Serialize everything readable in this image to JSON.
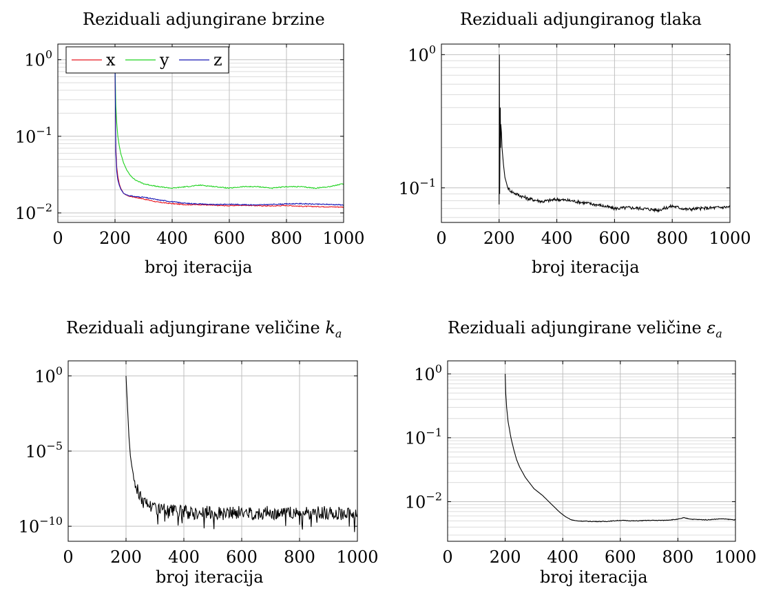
{
  "chart_data": [
    {
      "type": "line",
      "title": "Reziduali adjungirane brzine",
      "xlabel": "broj iteracija",
      "ylabel": "",
      "xlim": [
        0,
        1000
      ],
      "ylim": [
        0.0075,
        1.6
      ],
      "yscale": "log",
      "xticks": [
        0,
        200,
        400,
        600,
        800,
        1000
      ],
      "yticks": [
        {
          "value": 1,
          "base": "10",
          "exp": "0"
        },
        {
          "value": 0.1,
          "base": "10",
          "exp": "−1"
        },
        {
          "value": 0.01,
          "base": "10",
          "exp": "−2"
        }
      ],
      "grid": true,
      "legend": {
        "position": "top-left",
        "entries": [
          "x",
          "y",
          "z"
        ]
      },
      "series": [
        {
          "name": "x",
          "color": "#e8141e",
          "x": [
            200,
            203,
            206,
            210,
            215,
            220,
            230,
            240,
            250,
            270,
            300,
            350,
            400,
            450,
            500,
            550,
            600,
            650,
            700,
            750,
            800,
            850,
            900,
            950,
            1000
          ],
          "y": [
            0.9,
            0.07,
            0.04,
            0.03,
            0.024,
            0.021,
            0.018,
            0.017,
            0.0165,
            0.016,
            0.0152,
            0.0138,
            0.0132,
            0.0128,
            0.0128,
            0.0125,
            0.0124,
            0.0126,
            0.0124,
            0.0123,
            0.0125,
            0.0122,
            0.0121,
            0.012,
            0.0119
          ]
        },
        {
          "name": "y",
          "color": "#1ed21e",
          "x": [
            200,
            203,
            206,
            210,
            215,
            220,
            230,
            240,
            250,
            270,
            300,
            350,
            400,
            450,
            500,
            550,
            600,
            650,
            700,
            750,
            800,
            850,
            900,
            950,
            1000
          ],
          "y": [
            0.9,
            0.25,
            0.15,
            0.1,
            0.075,
            0.06,
            0.045,
            0.037,
            0.032,
            0.027,
            0.024,
            0.022,
            0.021,
            0.022,
            0.023,
            0.022,
            0.021,
            0.022,
            0.022,
            0.021,
            0.022,
            0.022,
            0.021,
            0.022,
            0.024
          ]
        },
        {
          "name": "z",
          "color": "#1414b4",
          "x": [
            200,
            203,
            206,
            210,
            215,
            220,
            230,
            240,
            250,
            270,
            300,
            350,
            400,
            450,
            500,
            550,
            600,
            650,
            700,
            750,
            800,
            850,
            900,
            950,
            1000
          ],
          "y": [
            0.9,
            0.06,
            0.035,
            0.027,
            0.023,
            0.0205,
            0.018,
            0.0172,
            0.0168,
            0.0163,
            0.016,
            0.0148,
            0.014,
            0.0133,
            0.0131,
            0.0128,
            0.013,
            0.0128,
            0.0127,
            0.0129,
            0.0131,
            0.0132,
            0.013,
            0.0129,
            0.0127
          ]
        }
      ]
    },
    {
      "type": "line",
      "title": "Reziduali adjungiranog tlaka",
      "xlabel": "broj iteracija",
      "ylabel": "",
      "xlim": [
        0,
        1000
      ],
      "ylim": [
        0.055,
        1.2
      ],
      "yscale": "log",
      "xticks": [
        0,
        200,
        400,
        600,
        800,
        1000
      ],
      "yticks": [
        {
          "value": 1,
          "base": "10",
          "exp": "0"
        },
        {
          "value": 0.1,
          "base": "10",
          "exp": "−1"
        }
      ],
      "grid": true,
      "series": [
        {
          "name": "",
          "color": "#000000",
          "x": [
            200,
            201,
            202,
            204,
            205,
            206,
            208,
            210,
            215,
            220,
            230,
            240,
            250,
            270,
            300,
            350,
            400,
            450,
            500,
            550,
            600,
            650,
            700,
            750,
            800,
            850,
            900,
            950,
            1000
          ],
          "y": [
            0.075,
            1.0,
            0.09,
            0.4,
            0.2,
            0.3,
            0.26,
            0.2,
            0.15,
            0.12,
            0.1,
            0.095,
            0.092,
            0.088,
            0.083,
            0.079,
            0.082,
            0.08,
            0.077,
            0.074,
            0.07,
            0.071,
            0.07,
            0.068,
            0.073,
            0.069,
            0.07,
            0.071,
            0.072
          ]
        }
      ]
    },
    {
      "type": "line",
      "title": "Reziduali adjungirane veličine ",
      "title_math": "k",
      "title_sub": "a",
      "xlabel": "broj iteracija",
      "ylabel": "",
      "xlim": [
        0,
        1000
      ],
      "ylim": [
        1e-11,
        10
      ],
      "yscale": "log",
      "xticks": [
        0,
        200,
        400,
        600,
        800,
        1000
      ],
      "yticks": [
        {
          "value": 1,
          "base": "10",
          "exp": "0"
        },
        {
          "value": 1e-05,
          "base": "10",
          "exp": "−5"
        },
        {
          "value": 1e-10,
          "base": "10",
          "exp": "−10"
        }
      ],
      "grid": true,
      "series": [
        {
          "name": "",
          "color": "#000000",
          "x": [
            200,
            205,
            210,
            215,
            220,
            225,
            230,
            240,
            250,
            260,
            280,
            300,
            320,
            350,
            380,
            400,
            430,
            460,
            500,
            540,
            560,
            600,
            650,
            700,
            750,
            800,
            850,
            900,
            950,
            1000
          ],
          "y": [
            1.0,
            0.01,
            0.0001,
            5e-06,
            1e-06,
            3e-07,
            1e-07,
            3e-08,
            1e-08,
            5e-09,
            3e-09,
            2e-09,
            1.5e-09,
            1.2e-09,
            1e-09,
            1e-09,
            9e-10,
            9e-10,
            9e-10,
            8e-10,
            8e-10,
            9e-10,
            8e-10,
            9e-10,
            8e-10,
            9e-10,
            8e-10,
            9e-10,
            8e-10,
            7e-10
          ]
        }
      ]
    },
    {
      "type": "line",
      "title": "Reziduali adjungirane veličine ",
      "title_math": "ε",
      "title_sub": "a",
      "xlabel": "broj iteracija",
      "ylabel": "",
      "xlim": [
        0,
        1000
      ],
      "ylim": [
        0.0024,
        1.6
      ],
      "yscale": "log",
      "xticks": [
        0,
        200,
        400,
        600,
        800,
        1000
      ],
      "yticks": [
        {
          "value": 1,
          "base": "10",
          "exp": "0"
        },
        {
          "value": 0.1,
          "base": "10",
          "exp": "−1"
        },
        {
          "value": 0.01,
          "base": "10",
          "exp": "−2"
        }
      ],
      "grid": true,
      "series": [
        {
          "name": "",
          "color": "#000000",
          "x": [
            200,
            202,
            205,
            210,
            220,
            230,
            240,
            250,
            270,
            300,
            330,
            360,
            390,
            410,
            430,
            450,
            500,
            550,
            600,
            650,
            700,
            750,
            800,
            820,
            850,
            900,
            950,
            1000
          ],
          "y": [
            1.0,
            0.5,
            0.3,
            0.18,
            0.1,
            0.065,
            0.045,
            0.035,
            0.024,
            0.016,
            0.0125,
            0.0092,
            0.0068,
            0.0058,
            0.0052,
            0.005,
            0.0049,
            0.0049,
            0.0051,
            0.005,
            0.0051,
            0.0051,
            0.0053,
            0.0056,
            0.0053,
            0.0052,
            0.0054,
            0.0052
          ]
        }
      ]
    }
  ]
}
